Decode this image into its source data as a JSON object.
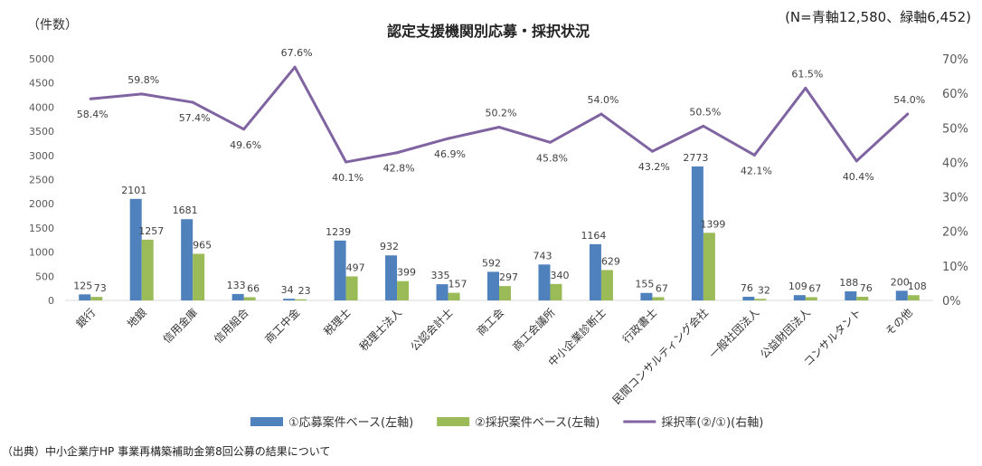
{
  "chart_data": {
    "type": "bar",
    "title": "認定支援機関別応募・採択状況",
    "note": "(N=青軸12,580、緑軸6,452)",
    "y_left_label": "（件数）",
    "source": "（出典）中小企業庁HP 事業再構築補助金第8回公募の結果について",
    "categories": [
      "銀行",
      "地銀",
      "信用金庫",
      "信用組合",
      "商工中金",
      "税理士",
      "税理士法人",
      "公認会計士",
      "商工会",
      "商工会議所",
      "中小企業診断士",
      "行政書士",
      "民間コンサルティング会社",
      "一般社団法人",
      "公益財団法人",
      "コンサルタント",
      "その他"
    ],
    "ylim_left": [
      0,
      5000
    ],
    "yticks_left": [
      "0",
      "500",
      "1000",
      "1500",
      "2000",
      "2500",
      "3000",
      "3500",
      "4000",
      "4500",
      "5000"
    ],
    "ylim_right": [
      0,
      70
    ],
    "yticks_right": [
      "0%",
      "10%",
      "20%",
      "30%",
      "40%",
      "50%",
      "60%",
      "70%"
    ],
    "series": [
      {
        "name": "①応募案件ベース(左軸)",
        "type": "bar",
        "axis": "left",
        "color": "#4F81BD",
        "values": [
          125,
          2101,
          1681,
          133,
          34,
          1239,
          932,
          335,
          592,
          743,
          1164,
          155,
          2773,
          76,
          109,
          188,
          200
        ]
      },
      {
        "name": "②採択案件ベース(左軸)",
        "type": "bar",
        "axis": "left",
        "color": "#9BBB59",
        "values": [
          73,
          1257,
          965,
          66,
          23,
          497,
          399,
          157,
          297,
          340,
          629,
          67,
          1399,
          32,
          67,
          76,
          108
        ]
      },
      {
        "name": "採択率(②/①)(右軸)",
        "type": "line",
        "axis": "right",
        "color": "#8064A2",
        "values": [
          58.4,
          59.8,
          57.4,
          49.6,
          67.6,
          40.1,
          42.8,
          46.9,
          50.2,
          45.8,
          54.0,
          43.2,
          50.5,
          42.1,
          61.5,
          40.4,
          54.0
        ],
        "labels": [
          "58.4%",
          "59.8%",
          "57.4%",
          "49.6%",
          "67.6%",
          "40.1%",
          "42.8%",
          "46.9%",
          "50.2%",
          "45.8%",
          "54.0%",
          "43.2%",
          "50.5%",
          "42.1%",
          "61.5%",
          "40.4%",
          "54.0%"
        ]
      }
    ],
    "grid": false,
    "legend_position": "bottom"
  }
}
